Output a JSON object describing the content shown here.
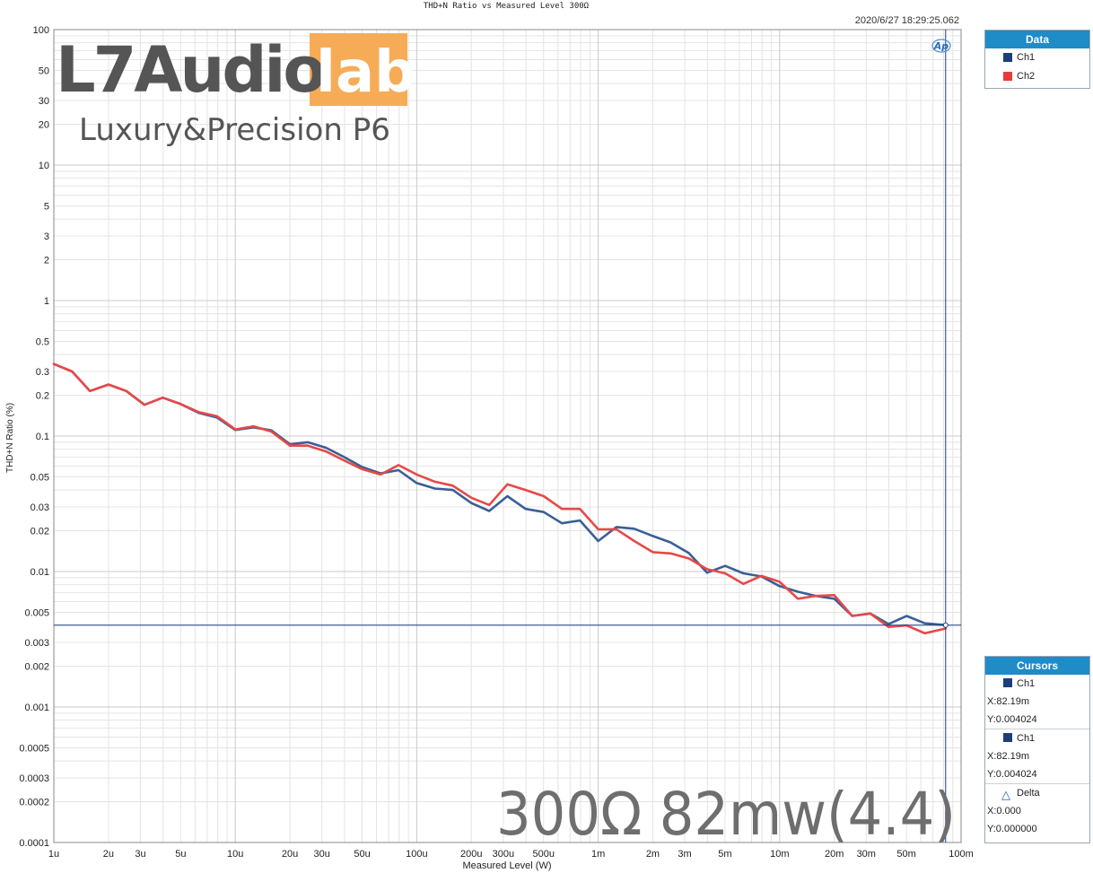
{
  "chart_data": {
    "type": "line",
    "title": "THD+N Ratio vs Measured Level 300Ω",
    "timestamp": "2020/6/27 18:29:25.062",
    "xlabel": "Measured Level (W)",
    "ylabel": "THD+N Ratio (%)",
    "xscale": "log",
    "yscale": "log",
    "xlim": [
      1e-06,
      0.1
    ],
    "ylim": [
      0.0001,
      100
    ],
    "grid": true,
    "legend_position": "right",
    "x_ticks": [
      {
        "v": 1e-06,
        "label": "1u"
      },
      {
        "v": 2e-06,
        "label": "2u"
      },
      {
        "v": 3e-06,
        "label": "3u"
      },
      {
        "v": 5e-06,
        "label": "5u"
      },
      {
        "v": 1e-05,
        "label": "10u"
      },
      {
        "v": 2e-05,
        "label": "20u"
      },
      {
        "v": 3e-05,
        "label": "30u"
      },
      {
        "v": 5e-05,
        "label": "50u"
      },
      {
        "v": 0.0001,
        "label": "100u"
      },
      {
        "v": 0.0002,
        "label": "200u"
      },
      {
        "v": 0.0003,
        "label": "300u"
      },
      {
        "v": 0.0005,
        "label": "500u"
      },
      {
        "v": 0.001,
        "label": "1m"
      },
      {
        "v": 0.002,
        "label": "2m"
      },
      {
        "v": 0.003,
        "label": "3m"
      },
      {
        "v": 0.005,
        "label": "5m"
      },
      {
        "v": 0.01,
        "label": "10m"
      },
      {
        "v": 0.02,
        "label": "20m"
      },
      {
        "v": 0.03,
        "label": "30m"
      },
      {
        "v": 0.05,
        "label": "50m"
      },
      {
        "v": 0.1,
        "label": "100m"
      }
    ],
    "y_ticks": [
      {
        "v": 100,
        "label": "100"
      },
      {
        "v": 50,
        "label": "50"
      },
      {
        "v": 30,
        "label": "30"
      },
      {
        "v": 20,
        "label": "20"
      },
      {
        "v": 10,
        "label": "10"
      },
      {
        "v": 5,
        "label": "5"
      },
      {
        "v": 3,
        "label": "3"
      },
      {
        "v": 2,
        "label": "2"
      },
      {
        "v": 1,
        "label": "1"
      },
      {
        "v": 0.5,
        "label": "0.5"
      },
      {
        "v": 0.3,
        "label": "0.3"
      },
      {
        "v": 0.2,
        "label": "0.2"
      },
      {
        "v": 0.1,
        "label": "0.1"
      },
      {
        "v": 0.05,
        "label": "0.05"
      },
      {
        "v": 0.03,
        "label": "0.03"
      },
      {
        "v": 0.02,
        "label": "0.02"
      },
      {
        "v": 0.01,
        "label": "0.01"
      },
      {
        "v": 0.005,
        "label": "0.005"
      },
      {
        "v": 0.003,
        "label": "0.003"
      },
      {
        "v": 0.002,
        "label": "0.002"
      },
      {
        "v": 0.001,
        "label": "0.001"
      },
      {
        "v": 0.0005,
        "label": "0.0005"
      },
      {
        "v": 0.0003,
        "label": "0.0003"
      },
      {
        "v": 0.0002,
        "label": "0.0002"
      },
      {
        "v": 0.0001,
        "label": "0.0001"
      }
    ],
    "series": [
      {
        "name": "Ch1",
        "color": "#3a5f95",
        "x": [
          1e-06,
          1.26e-06,
          1.58e-06,
          2e-06,
          2.51e-06,
          3.16e-06,
          3.98e-06,
          5.01e-06,
          6.31e-06,
          7.94e-06,
          1e-05,
          1.26e-05,
          1.58e-05,
          2e-05,
          2.51e-05,
          3.16e-05,
          3.98e-05,
          5.01e-05,
          6.31e-05,
          7.94e-05,
          0.0001,
          0.000126,
          0.000158,
          0.0002,
          0.000251,
          0.000316,
          0.000398,
          0.000501,
          0.000631,
          0.000794,
          0.001,
          0.00126,
          0.00158,
          0.002,
          0.00251,
          0.00316,
          0.00398,
          0.00501,
          0.00631,
          0.00794,
          0.01,
          0.0126,
          0.0158,
          0.02,
          0.0251,
          0.0316,
          0.0398,
          0.0501,
          0.0631,
          0.08219
        ],
        "y": [
          0.34,
          0.3,
          0.215,
          0.24,
          0.215,
          0.17,
          0.192,
          0.172,
          0.148,
          0.137,
          0.111,
          0.116,
          0.11,
          0.087,
          0.09,
          0.082,
          0.07,
          0.059,
          0.053,
          0.056,
          0.045,
          0.041,
          0.04,
          0.032,
          0.028,
          0.036,
          0.029,
          0.0275,
          0.0227,
          0.0238,
          0.0168,
          0.0213,
          0.0207,
          0.0183,
          0.0164,
          0.0137,
          0.0098,
          0.011,
          0.0097,
          0.0092,
          0.0078,
          0.0071,
          0.0066,
          0.0063,
          0.0047,
          0.0049,
          0.0041,
          0.0047,
          0.00415,
          0.004024
        ]
      },
      {
        "name": "Ch2",
        "color": "#e84848",
        "x": [
          1e-06,
          1.26e-06,
          1.58e-06,
          2e-06,
          2.51e-06,
          3.16e-06,
          3.98e-06,
          5.01e-06,
          6.31e-06,
          7.94e-06,
          1e-05,
          1.26e-05,
          1.58e-05,
          2e-05,
          2.51e-05,
          3.16e-05,
          3.98e-05,
          5.01e-05,
          6.31e-05,
          7.94e-05,
          0.0001,
          0.000126,
          0.000158,
          0.0002,
          0.000251,
          0.000316,
          0.000398,
          0.000501,
          0.000631,
          0.000794,
          0.001,
          0.00126,
          0.00158,
          0.002,
          0.00251,
          0.00316,
          0.00398,
          0.00501,
          0.00631,
          0.00794,
          0.01,
          0.0126,
          0.0158,
          0.02,
          0.0251,
          0.0316,
          0.0398,
          0.0501,
          0.0631,
          0.08219
        ],
        "y": [
          0.34,
          0.3,
          0.215,
          0.24,
          0.215,
          0.17,
          0.192,
          0.172,
          0.15,
          0.14,
          0.112,
          0.118,
          0.108,
          0.085,
          0.085,
          0.077,
          0.066,
          0.057,
          0.052,
          0.061,
          0.052,
          0.046,
          0.043,
          0.035,
          0.031,
          0.044,
          0.04,
          0.036,
          0.029,
          0.029,
          0.0205,
          0.0205,
          0.0168,
          0.0139,
          0.0136,
          0.0125,
          0.0104,
          0.0097,
          0.0081,
          0.0093,
          0.0084,
          0.0063,
          0.0066,
          0.0067,
          0.0047,
          0.0049,
          0.0039,
          0.004,
          0.0035,
          0.0038
        ]
      }
    ],
    "cursor": {
      "x": 0.08219,
      "y": 0.004024
    }
  },
  "legend_panel": {
    "header": "Data",
    "items": [
      {
        "label": "Ch1",
        "color": "#1b3f7c"
      },
      {
        "label": "Ch2",
        "color": "#e83a3a"
      }
    ]
  },
  "cursors_panel": {
    "header": "Cursors",
    "groups": [
      {
        "label": "Ch1",
        "color": "#1b3f7c",
        "x": "X:82.19m",
        "y": "Y:0.004024"
      },
      {
        "label": "Ch1",
        "color": "#1b3f7c",
        "x": "X:82.19m",
        "y": "Y:0.004024"
      }
    ],
    "delta": {
      "label": "Delta",
      "x": "X:0.000",
      "y": "Y:0.000000"
    }
  },
  "watermark": {
    "brand_text": "L7Audio",
    "brand_box_text": "lab",
    "brand_box_color": "#f6ac57",
    "product_text": "Luxury&Precision P6",
    "overlay_text": "300Ω 82mw(4.4)"
  },
  "ap_logo": "Ap"
}
